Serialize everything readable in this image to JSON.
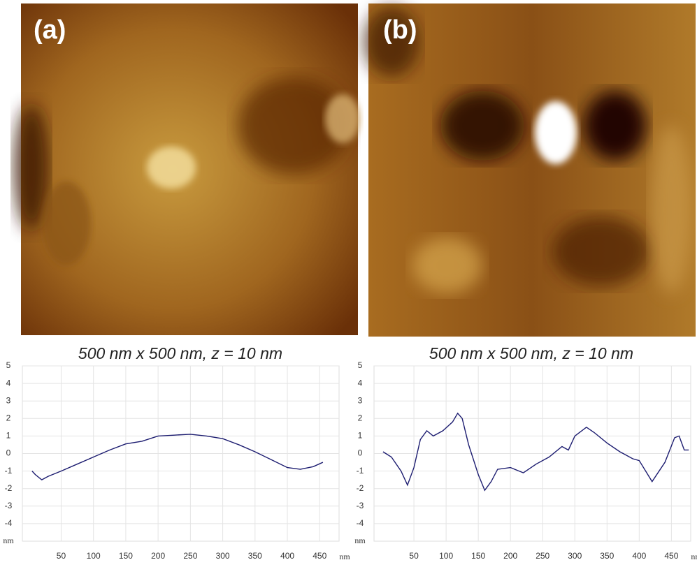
{
  "chart_data": [
    {
      "type": "line",
      "panel_label": "(a)",
      "caption": "500 nm x 500  nm, z = 10 nm",
      "y_label": "nm",
      "x_label": "nm",
      "x": [
        5,
        10,
        20,
        30,
        50,
        75,
        100,
        125,
        150,
        175,
        200,
        225,
        250,
        275,
        300,
        325,
        350,
        375,
        400,
        420,
        440,
        455
      ],
      "series": [
        {
          "color": "#1c1c70",
          "values": [
            -1.0,
            -1.2,
            -1.5,
            -1.3,
            -1.0,
            -0.6,
            -0.2,
            0.2,
            0.55,
            0.7,
            1.0,
            1.05,
            1.1,
            1.0,
            0.85,
            0.5,
            0.1,
            -0.35,
            -0.8,
            -0.9,
            -0.75,
            -0.5
          ]
        }
      ],
      "xlim": [
        -10,
        480
      ],
      "ylim": [
        -5,
        5
      ],
      "xticks": [
        50,
        100,
        150,
        200,
        250,
        300,
        350,
        400,
        450
      ],
      "yticks": [
        -4,
        -3,
        -2,
        -1,
        0,
        1,
        2,
        3,
        4,
        5
      ],
      "grid": true
    },
    {
      "type": "line",
      "panel_label": "(b)",
      "caption": "500 nm x 500  nm, z = 10 nm",
      "y_label": "nm",
      "x_label": "nm",
      "x": [
        2,
        15,
        30,
        40,
        50,
        60,
        70,
        80,
        95,
        110,
        118,
        125,
        135,
        150,
        160,
        170,
        180,
        200,
        220,
        240,
        260,
        280,
        290,
        300,
        318,
        330,
        350,
        370,
        390,
        400,
        420,
        440,
        455,
        462,
        470,
        477
      ],
      "series": [
        {
          "color": "#1c1c70",
          "values": [
            0.1,
            -0.2,
            -1.0,
            -1.8,
            -0.8,
            0.8,
            1.3,
            1.0,
            1.3,
            1.8,
            2.3,
            2.0,
            0.5,
            -1.2,
            -2.1,
            -1.6,
            -0.9,
            -0.8,
            -1.1,
            -0.6,
            -0.2,
            0.4,
            0.2,
            1.0,
            1.5,
            1.2,
            0.6,
            0.1,
            -0.3,
            -0.4,
            -1.6,
            -0.5,
            0.9,
            1.0,
            0.2,
            0.2
          ]
        }
      ],
      "xlim": [
        -12,
        480
      ],
      "ylim": [
        -5,
        5
      ],
      "xticks": [
        50,
        100,
        150,
        200,
        250,
        300,
        350,
        400,
        450
      ],
      "yticks": [
        -4,
        -3,
        -2,
        -1,
        0,
        1,
        2,
        3,
        4,
        5
      ],
      "grid": true
    }
  ]
}
